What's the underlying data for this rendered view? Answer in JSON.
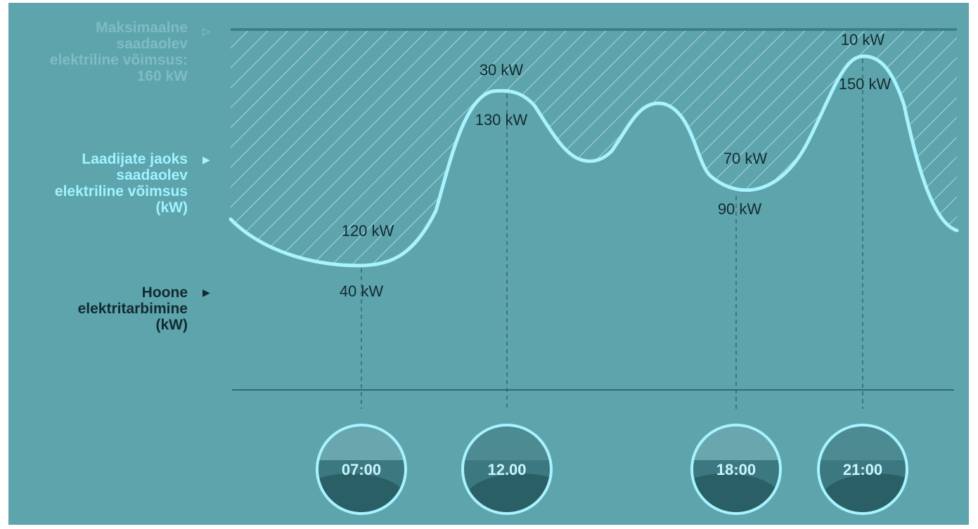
{
  "legend": {
    "max_power": "Maksimaalne\nsaadaolev\nelektriline võimsus:\n160 kW",
    "charger_power": "Laadijate jaoks\nsaadaolev\nelektriline võimsus\n(kW)",
    "building_consumption": "Hoone\nelektritarbimine\n(kW)"
  },
  "chart_data": {
    "type": "area",
    "max_power_kW": 160,
    "points": [
      {
        "time": "07:00",
        "building_kW": 40,
        "available_kW": 120
      },
      {
        "time": "12.00",
        "building_kW": 130,
        "available_kW": 30
      },
      {
        "time": "18:00",
        "building_kW": 90,
        "available_kW": 70
      },
      {
        "time": "21:00",
        "building_kW": 150,
        "available_kW": 10
      }
    ]
  },
  "colors": {
    "background": "#5ea4ad",
    "curve": "#a7f3ff",
    "hatch": "#bfe4e8",
    "max_line": "#3d7f88",
    "axis": "#2f6b73",
    "label": "#132b30"
  }
}
